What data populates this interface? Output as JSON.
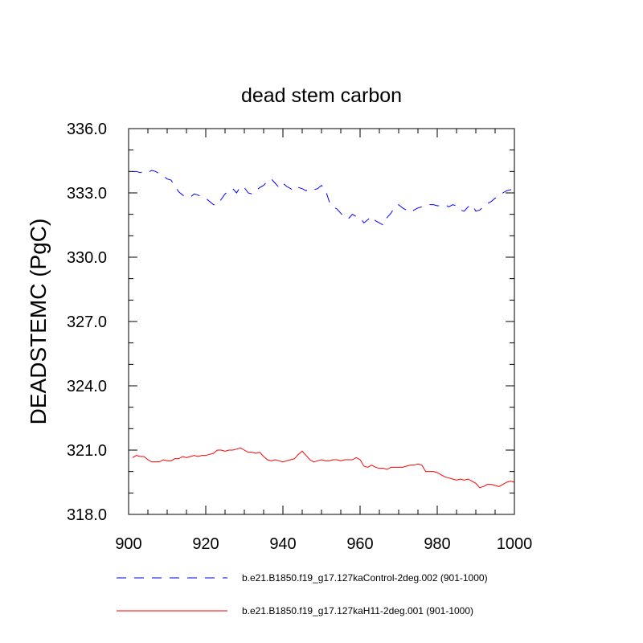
{
  "chart_data": {
    "type": "line",
    "title": "dead stem carbon",
    "xlabel": "",
    "ylabel": "DEADSTEMC  (PgC)",
    "xlim": [
      900,
      1000
    ],
    "ylim": [
      318.0,
      336.0
    ],
    "x_ticks": [
      900,
      920,
      940,
      960,
      980,
      1000
    ],
    "x_tick_labels": [
      "900",
      "920",
      "940",
      "960",
      "980",
      "1000"
    ],
    "y_ticks": [
      318.0,
      321.0,
      324.0,
      327.0,
      330.0,
      333.0,
      336.0
    ],
    "y_tick_labels": [
      "318.0",
      "321.0",
      "324.0",
      "327.0",
      "330.0",
      "333.0",
      "336.0"
    ],
    "legend_position": "bottom",
    "series": [
      {
        "name": "b.e21.B1850.f19_g17.127kaControl-2deg.002 (901-1000)",
        "color": "#0000ff",
        "dash": "dashed",
        "x": [
          901,
          902,
          903,
          904,
          905,
          906,
          907,
          908,
          909,
          910,
          911,
          912,
          913,
          914,
          915,
          916,
          917,
          918,
          919,
          920,
          921,
          922,
          923,
          924,
          925,
          926,
          927,
          928,
          929,
          930,
          931,
          932,
          933,
          934,
          935,
          936,
          937,
          938,
          939,
          940,
          941,
          942,
          943,
          944,
          945,
          946,
          947,
          948,
          949,
          950,
          951,
          952,
          953,
          954,
          955,
          956,
          957,
          958,
          959,
          960,
          961,
          962,
          963,
          964,
          965,
          966,
          967,
          968,
          969,
          970,
          971,
          972,
          973,
          974,
          975,
          976,
          977,
          978,
          979,
          980,
          981,
          982,
          983,
          984,
          985,
          986,
          987,
          988,
          989,
          990,
          991,
          992,
          993,
          994,
          995,
          996,
          997,
          998,
          999,
          1000
        ],
        "values": [
          334.0,
          334.0,
          333.95,
          334.0,
          333.95,
          334.05,
          334.0,
          333.9,
          333.8,
          333.65,
          333.6,
          333.3,
          333.05,
          332.9,
          332.8,
          332.8,
          332.95,
          332.9,
          332.8,
          332.75,
          332.6,
          332.45,
          332.45,
          332.7,
          332.95,
          333.1,
          333.2,
          333.0,
          333.3,
          333.25,
          333.0,
          332.95,
          333.1,
          333.25,
          333.35,
          333.55,
          333.65,
          333.45,
          333.25,
          333.45,
          333.3,
          333.2,
          333.1,
          333.25,
          333.2,
          333.1,
          333.2,
          333.15,
          333.2,
          333.35,
          333.15,
          332.6,
          332.35,
          332.25,
          332.05,
          331.85,
          331.8,
          332.0,
          331.9,
          331.85,
          331.6,
          331.75,
          331.9,
          331.7,
          331.6,
          331.5,
          331.85,
          332.05,
          332.35,
          332.45,
          332.3,
          332.2,
          332.1,
          332.2,
          332.3,
          332.35,
          332.4,
          332.45,
          332.45,
          332.4,
          332.4,
          332.45,
          332.35,
          332.45,
          332.4,
          332.2,
          332.15,
          332.35,
          332.45,
          332.15,
          332.2,
          332.35,
          332.5,
          332.6,
          332.75,
          332.85,
          333.0,
          333.1,
          333.15,
          333.1
        ]
      },
      {
        "name": "b.e21.B1850.f19_g17.127kaH11-2deg.001 (901-1000)",
        "color": "#ff0000",
        "dash": "solid",
        "x": [
          901,
          902,
          903,
          904,
          905,
          906,
          907,
          908,
          909,
          910,
          911,
          912,
          913,
          914,
          915,
          916,
          917,
          918,
          919,
          920,
          921,
          922,
          923,
          924,
          925,
          926,
          927,
          928,
          929,
          930,
          931,
          932,
          933,
          934,
          935,
          936,
          937,
          938,
          939,
          940,
          941,
          942,
          943,
          944,
          945,
          946,
          947,
          948,
          949,
          950,
          951,
          952,
          953,
          954,
          955,
          956,
          957,
          958,
          959,
          960,
          961,
          962,
          963,
          964,
          965,
          966,
          967,
          968,
          969,
          970,
          971,
          972,
          973,
          974,
          975,
          976,
          977,
          978,
          979,
          980,
          981,
          982,
          983,
          984,
          985,
          986,
          987,
          988,
          989,
          990,
          991,
          992,
          993,
          994,
          995,
          996,
          997,
          998,
          999,
          1000
        ],
        "values": [
          320.65,
          320.75,
          320.7,
          320.7,
          320.55,
          320.45,
          320.45,
          320.45,
          320.55,
          320.5,
          320.5,
          320.6,
          320.6,
          320.7,
          320.65,
          320.7,
          320.75,
          320.7,
          320.75,
          320.75,
          320.8,
          320.85,
          321.0,
          321.0,
          320.95,
          321.0,
          321.0,
          321.05,
          321.1,
          321.0,
          320.9,
          320.9,
          320.85,
          320.9,
          320.7,
          320.55,
          320.5,
          320.55,
          320.5,
          320.45,
          320.5,
          320.55,
          320.6,
          320.8,
          320.95,
          320.75,
          320.55,
          320.45,
          320.5,
          320.55,
          320.5,
          320.5,
          320.55,
          320.55,
          320.5,
          320.55,
          320.55,
          320.55,
          320.65,
          320.55,
          320.25,
          320.2,
          320.3,
          320.2,
          320.15,
          320.15,
          320.1,
          320.2,
          320.2,
          320.2,
          320.2,
          320.25,
          320.3,
          320.3,
          320.35,
          320.3,
          320.0,
          320.0,
          320.0,
          319.95,
          319.85,
          319.75,
          319.7,
          319.65,
          319.6,
          319.65,
          319.6,
          319.65,
          319.55,
          319.45,
          319.25,
          319.3,
          319.4,
          319.4,
          319.35,
          319.3,
          319.4,
          319.5,
          319.55,
          319.5
        ]
      }
    ]
  }
}
